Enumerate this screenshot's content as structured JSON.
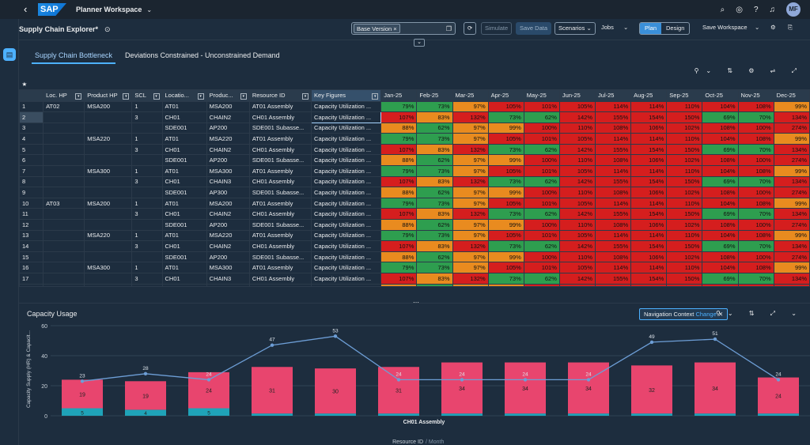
{
  "shell": {
    "logo": "SAP",
    "title": "Planner Workspace",
    "user_initials": "MF"
  },
  "toolbar": {
    "page_title": "Supply Chain Explorer*",
    "version_token": "Base Version",
    "simulate": "Simulate",
    "save_data": "Save Data",
    "scenarios": "Scenarios",
    "jobs": "Jobs",
    "plan": "Plan",
    "design": "Design",
    "save_workspace": "Save Workspace"
  },
  "tabs": [
    "Supply Chain Bottleneck",
    "Deviations Constrained - Unconstrained Demand"
  ],
  "grid": {
    "star": "★",
    "headers": [
      "Loc. HP",
      "Product HP",
      "SCL",
      "Locatio...",
      "Produc...",
      "Resource ID",
      "Key Figures",
      "Jan-25",
      "Feb-25",
      "Mar-25",
      "Apr-25",
      "May-25",
      "Jun-25",
      "Jul-25",
      "Aug-25",
      "Sep-25",
      "Oct-25",
      "Nov-25",
      "Dec-25"
    ],
    "rows": [
      [
        "1",
        "AT02",
        "MSA200",
        "1",
        "AT01",
        "MSA200",
        "AT01 Assembly",
        "Capacity Utilization ..."
      ],
      [
        "2",
        "",
        "",
        "3",
        "CH01",
        "CHAIN2",
        "CH01 Assembly",
        "Capacity Utilization ..."
      ],
      [
        "3",
        "",
        "",
        "",
        "SDE001",
        "AP200",
        "SDE001 Subasse...",
        "Capacity Utilization ..."
      ],
      [
        "4",
        "",
        "MSA220",
        "1",
        "AT01",
        "MSA220",
        "AT01 Assembly",
        "Capacity Utilization ..."
      ],
      [
        "5",
        "",
        "",
        "3",
        "CH01",
        "CHAIN2",
        "CH01 Assembly",
        "Capacity Utilization ..."
      ],
      [
        "6",
        "",
        "",
        "",
        "SDE001",
        "AP200",
        "SDE001 Subasse...",
        "Capacity Utilization ..."
      ],
      [
        "7",
        "",
        "MSA300",
        "1",
        "AT01",
        "MSA300",
        "AT01 Assembly",
        "Capacity Utilization ..."
      ],
      [
        "8",
        "",
        "",
        "3",
        "CH01",
        "CHAIN3",
        "CH01 Assembly",
        "Capacity Utilization ..."
      ],
      [
        "9",
        "",
        "",
        "",
        "SDE001",
        "AP300",
        "SDE001 Subasse...",
        "Capacity Utilization ..."
      ],
      [
        "10",
        "AT03",
        "MSA200",
        "1",
        "AT01",
        "MSA200",
        "AT01 Assembly",
        "Capacity Utilization ..."
      ],
      [
        "11",
        "",
        "",
        "3",
        "CH01",
        "CHAIN2",
        "CH01 Assembly",
        "Capacity Utilization ..."
      ],
      [
        "12",
        "",
        "",
        "",
        "SDE001",
        "AP200",
        "SDE001 Subasse...",
        "Capacity Utilization ..."
      ],
      [
        "13",
        "",
        "MSA220",
        "1",
        "AT01",
        "MSA220",
        "AT01 Assembly",
        "Capacity Utilization ..."
      ],
      [
        "14",
        "",
        "",
        "3",
        "CH01",
        "CHAIN2",
        "CH01 Assembly",
        "Capacity Utilization ..."
      ],
      [
        "15",
        "",
        "",
        "",
        "SDE001",
        "AP200",
        "SDE001 Subasse...",
        "Capacity Utilization ..."
      ],
      [
        "16",
        "",
        "MSA300",
        "1",
        "AT01",
        "MSA300",
        "AT01 Assembly",
        "Capacity Utilization ..."
      ],
      [
        "17",
        "",
        "",
        "3",
        "CH01",
        "CHAIN3",
        "CH01 Assembly",
        "Capacity Utilization ..."
      ],
      [
        "18",
        "",
        "",
        "",
        "SDE001",
        "AP300",
        "SDE001 Subasse...",
        "Capacity Utilization ..."
      ]
    ],
    "pattern_a": [
      "79%",
      "73%",
      "97%",
      "105%",
      "101%",
      "105%",
      "114%",
      "114%",
      "110%",
      "104%",
      "108%",
      "99%"
    ],
    "pattern_b": [
      "107%",
      "83%",
      "132%",
      "73%",
      "62%",
      "142%",
      "155%",
      "154%",
      "150%",
      "69%",
      "70%",
      "134%"
    ],
    "pattern_c": [
      "88%",
      "62%",
      "97%",
      "99%",
      "100%",
      "110%",
      "108%",
      "106%",
      "102%",
      "108%",
      "100%",
      "274%"
    ],
    "colors_a": [
      "g",
      "g",
      "o",
      "r",
      "r",
      "r",
      "r",
      "r",
      "r",
      "r",
      "r",
      "o"
    ],
    "colors_b": [
      "r",
      "o",
      "r",
      "g",
      "g",
      "r",
      "r",
      "r",
      "r",
      "g",
      "g",
      "r"
    ],
    "colors_c": [
      "o",
      "g",
      "o",
      "o",
      "r",
      "r",
      "r",
      "r",
      "r",
      "r",
      "r",
      "r"
    ]
  },
  "chart_panel": {
    "title": "Capacity Usage",
    "nav_context": "Navigation Context",
    "nav_change": "Change"
  },
  "chart_data": {
    "type": "bar",
    "categories": [
      "",
      "",
      "",
      "",
      "",
      "",
      "",
      "",
      "",
      "",
      "",
      ""
    ],
    "series": [
      {
        "values": [
          19,
          19,
          24,
          31,
          30,
          31,
          34,
          34,
          34,
          32,
          34,
          24
        ]
      },
      {
        "values": [
          5,
          4,
          5,
          null,
          null,
          null,
          null,
          null,
          null,
          null,
          null,
          null
        ]
      },
      {
        "values": [
          23,
          28,
          24,
          47,
          53,
          24,
          24,
          24,
          24,
          49,
          51,
          24
        ]
      }
    ],
    "line_labels": [
      "23",
      "28",
      "24",
      "47",
      "53",
      "24",
      "24",
      "24",
      "24",
      "49",
      "51",
      "24"
    ],
    "ylim": [
      0,
      60
    ],
    "yticks": [
      "0",
      "20",
      "40",
      "60"
    ],
    "ylabel": "Capacity Supply (HR) & Capacit...",
    "group_label": "CH01 Assembly",
    "xlabel_main": "Resource ID",
    "xlabel_sub": "Month",
    "colors": {
      "bar": "#e8456e",
      "base": "#1fa3b8",
      "line": "#6d9ed6"
    }
  }
}
